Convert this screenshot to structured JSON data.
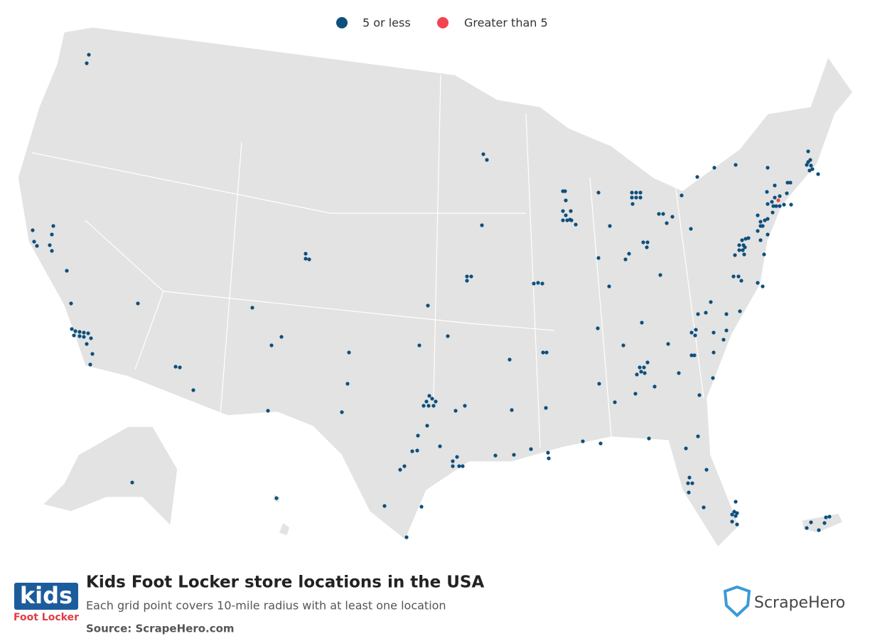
{
  "legend": [
    {
      "name": "5 or less",
      "color": "#0d4f7d"
    },
    {
      "name": "Greater than 5",
      "color": "#f2444f"
    }
  ],
  "footer": {
    "title": "Kids Foot Locker store locations in the USA",
    "subtitle": "Each grid point covers 10-mile radius with at least one location",
    "source": "Source: ScrapeHero.com",
    "logo_top": "kids",
    "logo_bottom": "Foot Locker",
    "brand": "ScrapeHero"
  }
}
